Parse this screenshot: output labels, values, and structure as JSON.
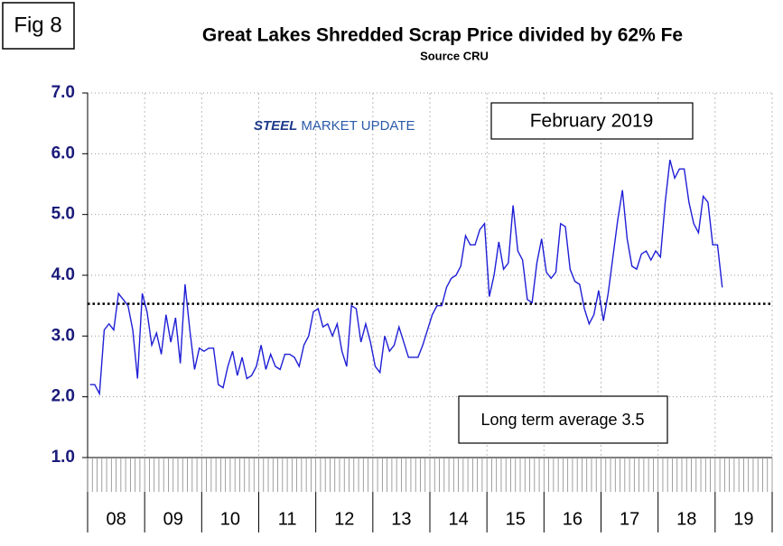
{
  "chart_data": {
    "type": "line",
    "figure_label": "Fig 8",
    "title": "Great Lakes Shredded Scrap Price divided by 62% Fe",
    "subtitle": "Source CRU",
    "logo": [
      "STEEL",
      "MARKET UPDATE"
    ],
    "date_note": "February 2019",
    "average_label": "Long term average 3.5",
    "average": 3.53,
    "categories": [
      "08",
      "09",
      "10",
      "11",
      "12",
      "13",
      "14",
      "15",
      "16",
      "17",
      "18",
      "19"
    ],
    "values": [
      [
        2.2,
        2.2,
        2.05,
        3.1,
        3.2,
        3.1,
        3.7,
        3.6,
        3.5,
        3.1,
        2.3,
        3.7
      ],
      [
        3.4,
        2.85,
        3.05,
        2.7,
        3.35,
        2.9,
        3.3,
        2.55,
        3.85,
        3.1,
        2.45,
        2.8
      ],
      [
        2.75,
        2.8,
        2.8,
        2.2,
        2.15,
        2.5,
        2.75,
        2.35,
        2.65,
        2.3,
        2.35,
        2.5
      ],
      [
        2.85,
        2.45,
        2.7,
        2.5,
        2.45,
        2.7,
        2.7,
        2.65,
        2.5,
        2.85,
        3.0,
        3.4
      ],
      [
        3.45,
        3.15,
        3.2,
        3.0,
        3.2,
        2.75,
        2.5,
        3.5,
        3.45,
        2.9,
        3.2,
        2.9
      ],
      [
        2.5,
        2.4,
        3.0,
        2.75,
        2.85,
        3.15,
        2.9,
        2.65,
        2.65,
        2.65,
        2.85,
        3.1
      ],
      [
        3.35,
        3.5,
        3.5,
        3.8,
        3.95,
        4.0,
        4.15,
        4.65,
        4.5,
        4.5,
        4.75,
        4.85
      ],
      [
        3.65,
        4.0,
        4.55,
        4.1,
        4.2,
        5.15,
        4.4,
        4.25,
        3.6,
        3.55,
        4.2,
        4.6
      ],
      [
        4.05,
        3.95,
        4.05,
        4.85,
        4.8,
        4.1,
        3.9,
        3.85,
        3.45,
        3.2,
        3.35,
        3.75
      ],
      [
        3.25,
        3.7,
        4.3,
        4.9,
        5.4,
        4.6,
        4.15,
        4.1,
        4.35,
        4.4,
        4.25,
        4.4
      ],
      [
        4.3,
        5.2,
        5.9,
        5.6,
        5.75,
        5.75,
        5.2,
        4.85,
        4.7,
        5.3,
        5.2,
        4.5
      ],
      [
        4.5,
        3.8
      ]
    ],
    "color": "#1f1fd6",
    "ylim": [
      1,
      7
    ],
    "yticks": [
      {
        "value": 1,
        "label": "1.0"
      },
      {
        "value": 2,
        "label": "2.0"
      },
      {
        "value": 3,
        "label": "3.0"
      },
      {
        "value": 4,
        "label": "4.0"
      },
      {
        "value": 5,
        "label": "5.0"
      },
      {
        "value": 6,
        "label": "6.0"
      },
      {
        "value": 7,
        "label": "7.0"
      }
    ],
    "grid": true
  }
}
